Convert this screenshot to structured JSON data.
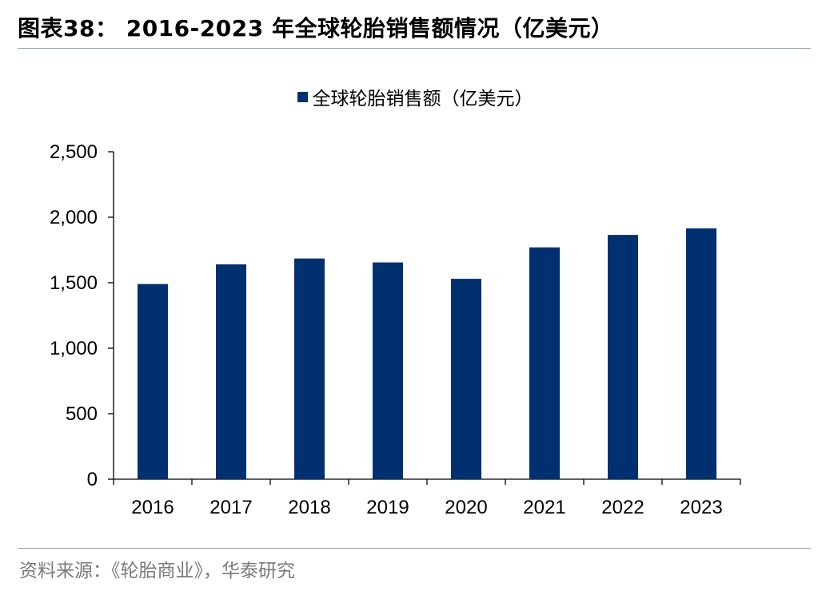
{
  "header": {
    "title": "图表38：  2016-2023 年全球轮胎销售额情况（亿美元）"
  },
  "footer": {
    "source": "资料来源：《轮胎商业》，华泰研究"
  },
  "colors": {
    "bar": "#003070",
    "rule": "#8fa3b8",
    "source_text": "#7a7a7a"
  },
  "chart_data": {
    "type": "bar",
    "title": "",
    "xlabel": "",
    "ylabel": "",
    "categories": [
      "2016",
      "2017",
      "2018",
      "2019",
      "2020",
      "2021",
      "2022",
      "2023"
    ],
    "series": [
      {
        "name": "全球轮胎销售额（亿美元）",
        "values": [
          1490,
          1640,
          1685,
          1655,
          1530,
          1770,
          1865,
          1915
        ]
      }
    ],
    "ylim": [
      0,
      2500
    ],
    "yticks": [
      0,
      500,
      1000,
      1500,
      2000,
      2500
    ],
    "ytick_labels": [
      "0",
      "500",
      "1,000",
      "1,500",
      "2,000",
      "2,500"
    ],
    "grid": false,
    "legend_position": "top-center"
  }
}
